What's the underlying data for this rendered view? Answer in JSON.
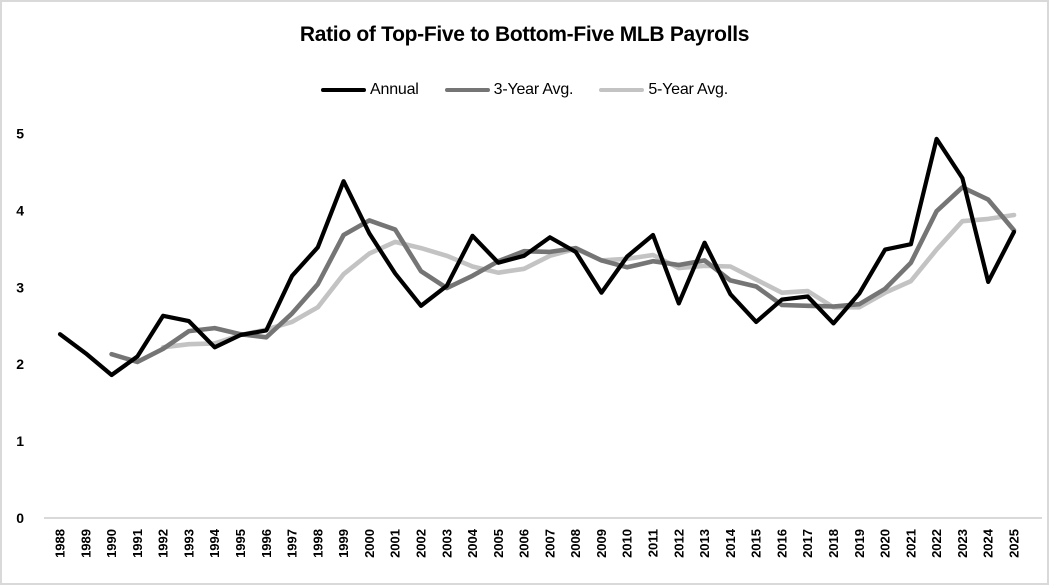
{
  "chart_data": {
    "type": "line",
    "title": "Ratio of Top-Five to Bottom-Five MLB Payrolls",
    "x": [
      1988,
      1989,
      1990,
      1991,
      1992,
      1993,
      1994,
      1995,
      1996,
      1997,
      1998,
      1999,
      2000,
      2001,
      2002,
      2003,
      2004,
      2005,
      2006,
      2007,
      2008,
      2009,
      2010,
      2011,
      2012,
      2013,
      2014,
      2015,
      2016,
      2017,
      2018,
      2019,
      2020,
      2021,
      2022,
      2023,
      2024,
      2025
    ],
    "series": [
      {
        "name": "Annual",
        "color": "#000000",
        "values": [
          2.39,
          2.14,
          1.86,
          2.1,
          2.63,
          2.56,
          2.22,
          2.38,
          2.44,
          3.15,
          3.52,
          4.38,
          3.7,
          3.18,
          2.76,
          3.02,
          3.67,
          3.32,
          3.41,
          3.65,
          3.46,
          2.93,
          3.4,
          3.68,
          2.79,
          3.58,
          2.91,
          2.55,
          2.84,
          2.88,
          2.53,
          2.92,
          3.49,
          3.56,
          4.93,
          4.42,
          3.07,
          3.72
        ]
      },
      {
        "name": "3-Year Avg.",
        "color": "#757575",
        "values": [
          null,
          null,
          2.13,
          2.03,
          2.2,
          2.43,
          2.47,
          2.39,
          2.35,
          2.66,
          3.04,
          3.68,
          3.87,
          3.75,
          3.21,
          2.99,
          3.15,
          3.34,
          3.47,
          3.46,
          3.51,
          3.35,
          3.26,
          3.34,
          3.29,
          3.35,
          3.09,
          3.01,
          2.77,
          2.76,
          2.75,
          2.78,
          2.98,
          3.32,
          3.99,
          4.3,
          4.14,
          3.74
        ]
      },
      {
        "name": "5-Year Avg.",
        "color": "#c3c3c3",
        "values": [
          null,
          null,
          null,
          null,
          2.22,
          2.26,
          2.27,
          2.38,
          2.45,
          2.55,
          2.74,
          3.17,
          3.44,
          3.59,
          3.51,
          3.41,
          3.27,
          3.19,
          3.24,
          3.41,
          3.5,
          3.35,
          3.37,
          3.42,
          3.25,
          3.28,
          3.27,
          3.1,
          2.93,
          2.95,
          2.74,
          2.74,
          2.93,
          3.08,
          3.49,
          3.86,
          3.89,
          3.94
        ]
      }
    ],
    "ylim": [
      0,
      5
    ],
    "yticks": [
      0,
      1,
      2,
      3,
      4,
      5
    ],
    "grid": false,
    "legend_position": "top",
    "axis_line_color": "#d9d9d9",
    "frame_color": "#d9d9d9"
  }
}
